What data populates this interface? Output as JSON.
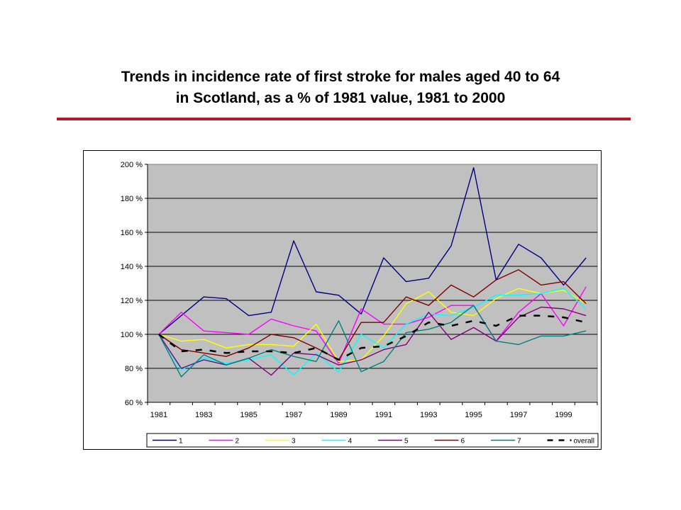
{
  "slide": {
    "title_line1": "Trends in incidence rate of first stroke for males aged 40 to 64",
    "title_line2": "in Scotland,  as a % of 1981 value, 1981 to 2000",
    "rule_color": "#b01c22"
  },
  "chart_data": {
    "type": "line",
    "title": "",
    "xlabel": "",
    "ylabel": "",
    "ylim": [
      60,
      200
    ],
    "yticks": [
      "200 %",
      "180 %",
      "160 %",
      "140 %",
      "120 %",
      "100 %",
      "80 %",
      "60 %"
    ],
    "xticks": [
      "1981",
      "1983",
      "1985",
      "1987",
      "1989",
      "1991",
      "1993",
      "1995",
      "1997",
      "1999"
    ],
    "grid": true,
    "plot_background": "#c0c0c0",
    "legend_position": "bottom",
    "x": [
      1981,
      1982,
      1983,
      1984,
      1985,
      1986,
      1987,
      1988,
      1989,
      1990,
      1991,
      1992,
      1993,
      1994,
      1995,
      1996,
      1997,
      1998,
      1999,
      2000
    ],
    "series": [
      {
        "name": "1",
        "color": "#000080",
        "dashed": false,
        "values": [
          100,
          111,
          122,
          121,
          111,
          113,
          155,
          125,
          123,
          112,
          145,
          131,
          133,
          152,
          198,
          132,
          153,
          145,
          129,
          145
        ]
      },
      {
        "name": "2",
        "color": "#ff00ff",
        "dashed": false,
        "values": [
          100,
          113,
          102,
          101,
          100,
          109,
          105,
          102,
          83,
          115,
          106,
          106,
          110,
          117,
          117,
          96,
          113,
          124,
          105,
          128
        ]
      },
      {
        "name": "3",
        "color": "#ffff00",
        "dashed": false,
        "values": [
          100,
          96,
          97,
          92,
          94,
          94,
          93,
          106,
          84,
          85,
          99,
          118,
          125,
          113,
          111,
          121,
          127,
          124,
          126,
          118
        ]
      },
      {
        "name": "4",
        "color": "#00ffff",
        "dashed": false,
        "values": [
          100,
          79,
          86,
          83,
          85,
          88,
          76,
          89,
          78,
          100,
          92,
          106,
          112,
          111,
          116,
          123,
          123,
          124,
          127,
          115
        ]
      },
      {
        "name": "5",
        "color": "#800080",
        "dashed": false,
        "values": [
          100,
          80,
          85,
          82,
          86,
          76,
          89,
          88,
          82,
          85,
          91,
          94,
          113,
          97,
          104,
          96,
          110,
          116,
          115,
          111
        ]
      },
      {
        "name": "6",
        "color": "#800000",
        "dashed": false,
        "values": [
          100,
          91,
          89,
          87,
          92,
          100,
          98,
          92,
          85,
          107,
          107,
          122,
          117,
          129,
          122,
          132,
          138,
          129,
          131,
          118
        ]
      },
      {
        "name": "7",
        "color": "#008080",
        "dashed": false,
        "values": [
          100,
          75,
          88,
          82,
          86,
          91,
          87,
          84,
          108,
          78,
          84,
          101,
          103,
          107,
          117,
          96,
          94,
          99,
          99,
          102
        ]
      },
      {
        "name": "overall",
        "color": "#000000",
        "dashed": true,
        "values": [
          100,
          90,
          91,
          89,
          90,
          90,
          89,
          92,
          85,
          92,
          93,
          99,
          107,
          105,
          108,
          105,
          111,
          111,
          110,
          107
        ]
      }
    ]
  }
}
